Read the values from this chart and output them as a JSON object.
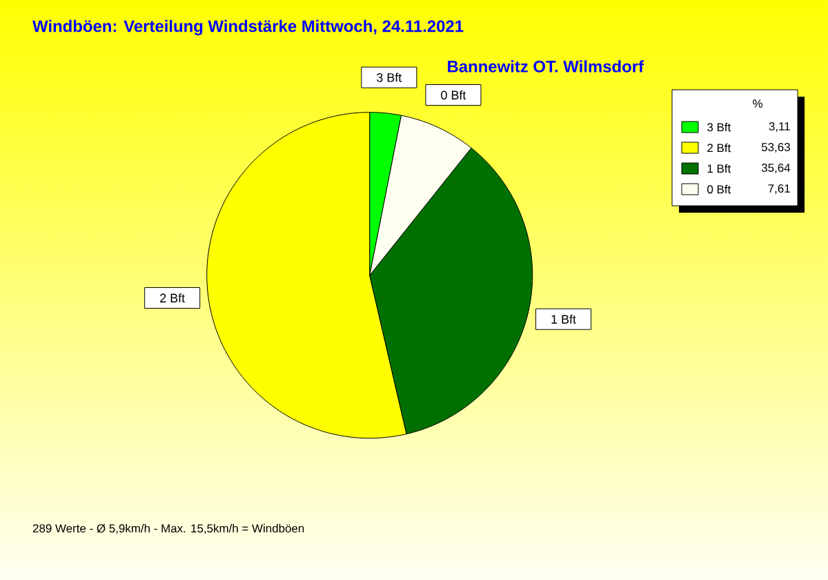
{
  "chart_data": {
    "type": "pie",
    "title": "Windböen: Verteilung Windstärke Mittwoch, 24.11.2021",
    "subtitle": "Bannewitz OT. Wilmsdorf",
    "legend_title": "%",
    "categories": [
      "3 Bft",
      "2 Bft",
      "1 Bft",
      "0 Bft"
    ],
    "values": [
      3.11,
      53.63,
      35.64,
      7.61
    ],
    "value_labels": [
      "3,11",
      "53,63",
      "35,64",
      "7,61"
    ],
    "colors": [
      "#00ff00",
      "#ffff00",
      "#007000",
      "#fffff0"
    ],
    "legend": "top right",
    "annotations": [
      "289 Werte - Ø 5,9km/h - Max. 15,5km/h = Windböen"
    ]
  }
}
